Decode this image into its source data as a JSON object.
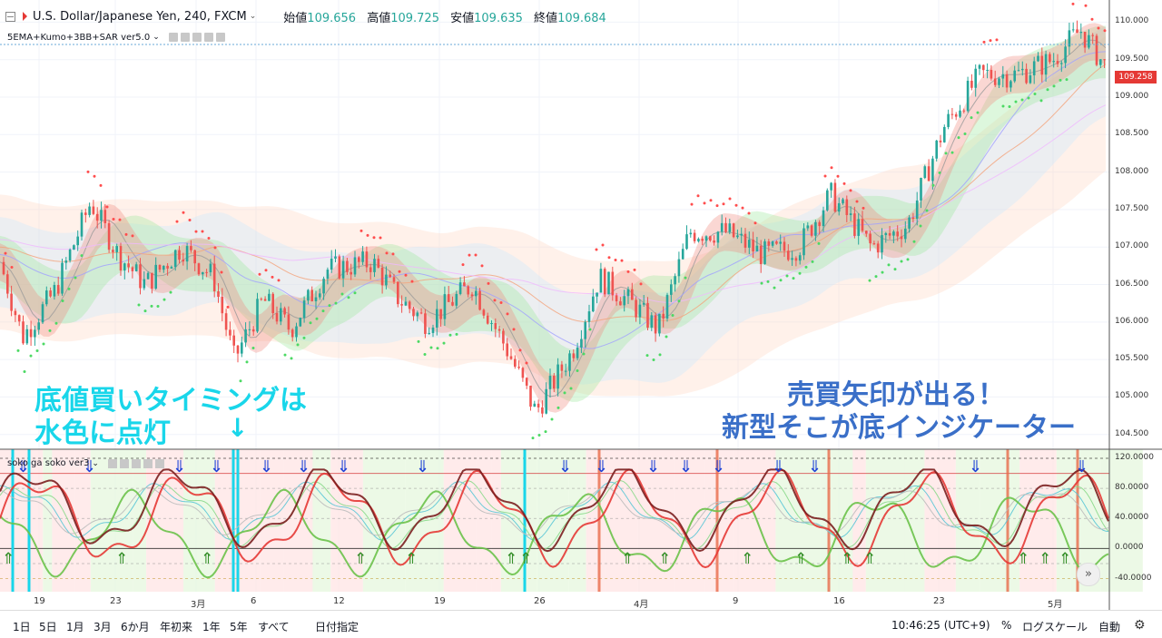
{
  "header": {
    "symbol": "U.S. Dollar/Japanese Yen, 240, FXCM",
    "open_label": "始値",
    "open": "109.656",
    "high_label": "高値",
    "high": "109.725",
    "low_label": "安値",
    "low": "109.635",
    "close_label": "終値",
    "close": "109.684"
  },
  "indicator_main": "5EMA+Kumo+3BB+SAR ver5.0",
  "indicator_sub": "soko ga soko ver3",
  "price_axis": [
    "110.000",
    "109.500",
    "109.000",
    "108.500",
    "108.000",
    "107.500",
    "107.000",
    "106.500",
    "106.000",
    "105.500",
    "105.000",
    "104.500"
  ],
  "last_price": "109.258",
  "osc_axis": [
    "120.0000",
    "80.0000",
    "40.0000",
    "0.0000",
    "-40.0000"
  ],
  "x_axis": [
    "19",
    "23",
    "3月",
    "6",
    "12",
    "19",
    "26",
    "4月",
    "9",
    "16",
    "23",
    "5月"
  ],
  "annotations": {
    "left_line1": "底値買いタイミングは",
    "left_line2": "水色に点灯",
    "left_arrow": "↓",
    "right_line1": "売買矢印が出る！",
    "right_line2": "新型そこが底インジケーター"
  },
  "timeframes": [
    "1日",
    "5日",
    "1月",
    "3月",
    "6か月",
    "年初来",
    "1年",
    "5年",
    "すべて"
  ],
  "goto_date": "日付指定",
  "clock": "10:46:25 (UTC+9)",
  "percent": "%",
  "log_scale": "ログスケール",
  "auto": "自動",
  "colors": {
    "up": "#26a69a",
    "down": "#ef5350",
    "accent": "#19d6ea",
    "blue": "#3a6fc8"
  }
}
